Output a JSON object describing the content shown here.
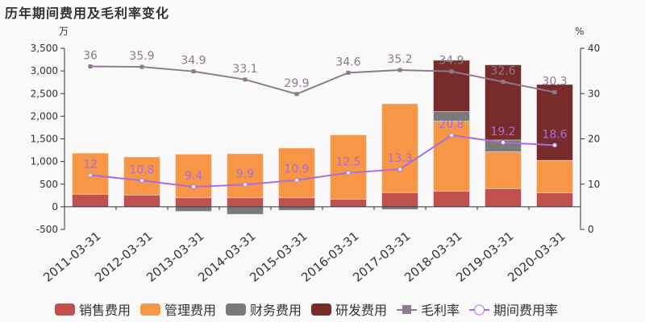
{
  "chart_data": {
    "type": "bar",
    "title": "历年期间费用及毛利率变化",
    "left_unit": "万",
    "right_unit": "%",
    "ylim_left": [
      -500,
      3500
    ],
    "ylim_right": [
      0,
      40
    ],
    "yticks_left": [
      "-500",
      "0",
      "500",
      "1,000",
      "1,500",
      "2,000",
      "2,500",
      "3,000",
      "3,500"
    ],
    "yticks_right": [
      "0",
      "10",
      "20",
      "30",
      "40"
    ],
    "categories": [
      "2011-03-31",
      "2012-03-31",
      "2013-03-31",
      "2014-03-31",
      "2015-03-31",
      "2016-03-31",
      "2017-03-31",
      "2018-03-31",
      "2019-03-31",
      "2020-03-31"
    ],
    "stacked": true,
    "legend_position": "bottom",
    "series": [
      {
        "name": "销售费用",
        "kind": "bar",
        "color": "#c0504d",
        "values": [
          278,
          261,
          201,
          201,
          201,
          166,
          314,
          344,
          403,
          308
        ]
      },
      {
        "name": "管理费用",
        "kind": "bar",
        "color": "#f79646",
        "values": [
          907,
          841,
          960,
          972,
          1096,
          1422,
          1961,
          1546,
          811,
          711
        ]
      },
      {
        "name": "财务费用",
        "kind": "bar",
        "color": "#7a7a7a",
        "values": [
          0,
          0,
          -101,
          -166,
          -77,
          0,
          -59,
          213,
          261,
          5
        ]
      },
      {
        "name": "研发费用",
        "kind": "bar",
        "color": "#772c2a",
        "values": [
          0,
          0,
          0,
          0,
          0,
          0,
          0,
          1132,
          1659,
          1677
        ]
      },
      {
        "name": "毛利率",
        "kind": "line",
        "axis": "right",
        "color": "#8e7a8e",
        "values": [
          36,
          35.9,
          34.9,
          33.1,
          29.9,
          34.6,
          35.2,
          34.9,
          32.6,
          30.3
        ]
      },
      {
        "name": "期间费用率",
        "kind": "line",
        "axis": "right",
        "color": "#a86ce0",
        "values": [
          12,
          10.8,
          9.4,
          9.9,
          10.9,
          12.5,
          13.3,
          20.8,
          19.2,
          18.6
        ]
      }
    ]
  }
}
